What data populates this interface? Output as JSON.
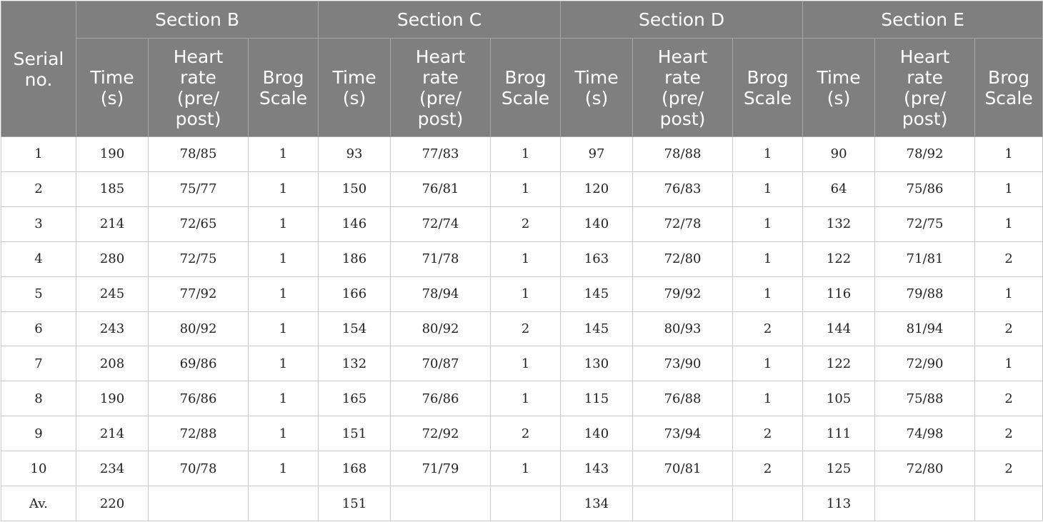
{
  "header": {
    "serial_label": [
      "Serial",
      "no."
    ],
    "sections": [
      "Section B",
      "Section C",
      "Section D",
      "Section E"
    ],
    "subcolumns": {
      "time": [
        "Time",
        "(s)"
      ],
      "heart_rate": [
        "Heart",
        "rate",
        "(pre/",
        "post)"
      ],
      "brog": [
        "Brog",
        "Scale"
      ]
    }
  },
  "rows": [
    [
      "1",
      "190",
      "78/85",
      "1",
      "93",
      "77/83",
      "1",
      "97",
      "78/88",
      "1",
      "90",
      "78/92",
      "1"
    ],
    [
      "2",
      "185",
      "75/77",
      "1",
      "150",
      "76/81",
      "1",
      "120",
      "76/83",
      "1",
      "64",
      "75/86",
      "1"
    ],
    [
      "3",
      "214",
      "72/65",
      "1",
      "146",
      "72/74",
      "2",
      "140",
      "72/78",
      "1",
      "132",
      "72/75",
      "1"
    ],
    [
      "4",
      "280",
      "72/75",
      "1",
      "186",
      "71/78",
      "1",
      "163",
      "72/80",
      "1",
      "122",
      "71/81",
      "2"
    ],
    [
      "5",
      "245",
      "77/92",
      "1",
      "166",
      "78/94",
      "1",
      "145",
      "79/92",
      "1",
      "116",
      "79/88",
      "1"
    ],
    [
      "6",
      "243",
      "80/92",
      "1",
      "154",
      "80/92",
      "2",
      "145",
      "80/93",
      "2",
      "144",
      "81/94",
      "2"
    ],
    [
      "7",
      "208",
      "69/86",
      "1",
      "132",
      "70/87",
      "1",
      "130",
      "73/90",
      "1",
      "122",
      "72/90",
      "1"
    ],
    [
      "8",
      "190",
      "76/86",
      "1",
      "165",
      "76/86",
      "1",
      "115",
      "76/88",
      "1",
      "105",
      "75/88",
      "2"
    ],
    [
      "9",
      "214",
      "72/88",
      "1",
      "151",
      "72/92",
      "2",
      "140",
      "73/94",
      "2",
      "111",
      "74/98",
      "2"
    ],
    [
      "10",
      "234",
      "70/78",
      "1",
      "168",
      "71/79",
      "1",
      "143",
      "70/81",
      "2",
      "125",
      "72/80",
      "2"
    ],
    [
      "Av.",
      "220",
      "",
      "",
      "151",
      "",
      "",
      "134",
      "",
      "",
      "113",
      "",
      ""
    ]
  ]
}
